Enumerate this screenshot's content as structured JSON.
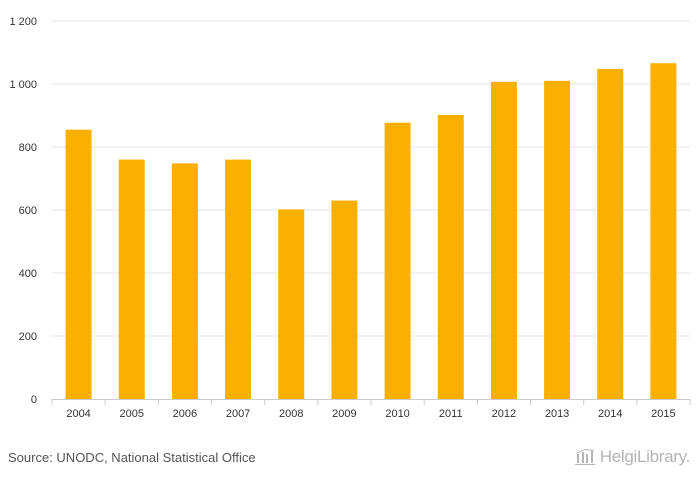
{
  "chart_data": {
    "type": "bar",
    "categories": [
      "2004",
      "2005",
      "2006",
      "2007",
      "2008",
      "2009",
      "2010",
      "2011",
      "2012",
      "2013",
      "2014",
      "2015"
    ],
    "values": [
      855,
      760,
      748,
      760,
      602,
      630,
      877,
      902,
      1007,
      1010,
      1048,
      1066
    ],
    "ylim": [
      0,
      1200
    ],
    "yticks": [
      0,
      200,
      400,
      600,
      800,
      1000,
      1200
    ],
    "ytick_labels": [
      "0",
      "200",
      "400",
      "600",
      "800",
      "1 000",
      "1 200"
    ],
    "bar_color": "#f9b000",
    "grid": true,
    "title": "",
    "xlabel": "",
    "ylabel": ""
  },
  "footer": {
    "source": "Source: UNODC, National Statistical Office",
    "logo_text": "HelgiLibrary."
  },
  "colors": {
    "bar": "#f9b000",
    "grid": "#e6e6e6",
    "axis": "#cccccc",
    "logo": "#b5b5b5"
  }
}
